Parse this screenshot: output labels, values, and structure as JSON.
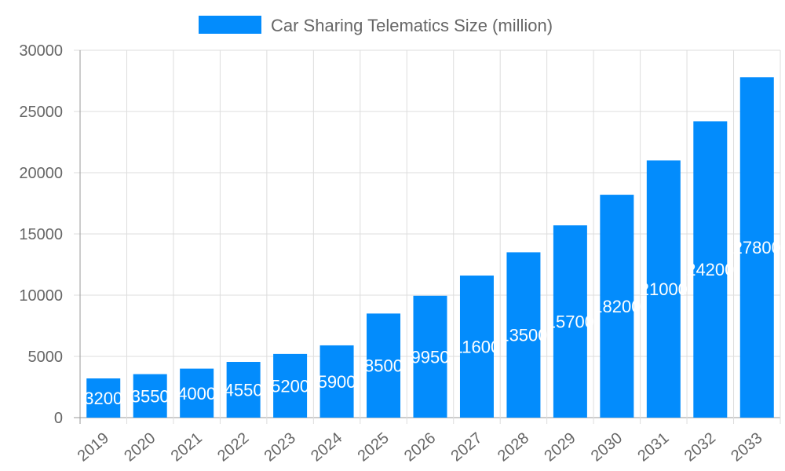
{
  "chart_data": {
    "type": "bar",
    "title": "",
    "xlabel": "",
    "ylabel": "",
    "legend": {
      "position": "top",
      "entries": [
        "Car Sharing Telematics Size (million)"
      ]
    },
    "categories": [
      "2019",
      "2020",
      "2021",
      "2022",
      "2023",
      "2024",
      "2025",
      "2026",
      "2027",
      "2028",
      "2029",
      "2030",
      "2031",
      "2032",
      "2033"
    ],
    "series": [
      {
        "name": "Car Sharing Telematics Size (million)",
        "values": [
          3200,
          3550,
          4000,
          4550,
          5200,
          5900,
          8500,
          9950,
          11600,
          13500,
          15700,
          18200,
          21000,
          24200,
          27800
        ],
        "color": "#038cfc"
      }
    ],
    "ylim": [
      0,
      30000
    ],
    "yticks": [
      "0",
      "5000",
      "10000",
      "15000",
      "20000",
      "25000",
      "30000"
    ],
    "grid": true,
    "data_labels": true
  }
}
